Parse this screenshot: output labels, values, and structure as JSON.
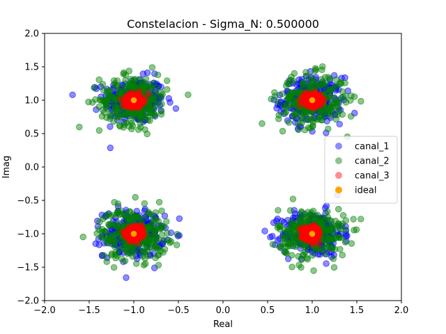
{
  "chart_data": {
    "type": "scatter",
    "title": "Constelacion - Sigma_N: 0.500000",
    "xlabel": "Real",
    "ylabel": "Imag",
    "xlim": [
      -2.0,
      2.0
    ],
    "ylim": [
      -2.0,
      2.0
    ],
    "xticks": [
      "−2.0",
      "−1.5",
      "−1.0",
      "−0.5",
      "0.0",
      "0.5",
      "1.0",
      "1.5",
      "2.0"
    ],
    "yticks": [
      "−2.0",
      "−1.5",
      "−1.0",
      "−0.5",
      "0.0",
      "0.5",
      "1.0",
      "1.5",
      "2.0"
    ],
    "grid": false,
    "legend_position": "right",
    "constellation_centers": [
      [
        -1,
        1
      ],
      [
        1,
        1
      ],
      [
        -1,
        -1
      ],
      [
        1,
        -1
      ]
    ],
    "series": [
      {
        "name": "canal_1",
        "color": "#0000ff",
        "alpha": 0.45,
        "spread": 0.17
      },
      {
        "name": "canal_2",
        "color": "#008000",
        "alpha": 0.45,
        "spread": 0.19
      },
      {
        "name": "canal_3",
        "color": "#ff0000",
        "alpha": 0.45,
        "spread": 0.045
      },
      {
        "name": "ideal",
        "color": "#ffa500",
        "alpha": 1.0,
        "points": [
          [
            -1,
            1
          ],
          [
            1,
            1
          ],
          [
            -1,
            -1
          ],
          [
            1,
            -1
          ]
        ]
      }
    ]
  }
}
